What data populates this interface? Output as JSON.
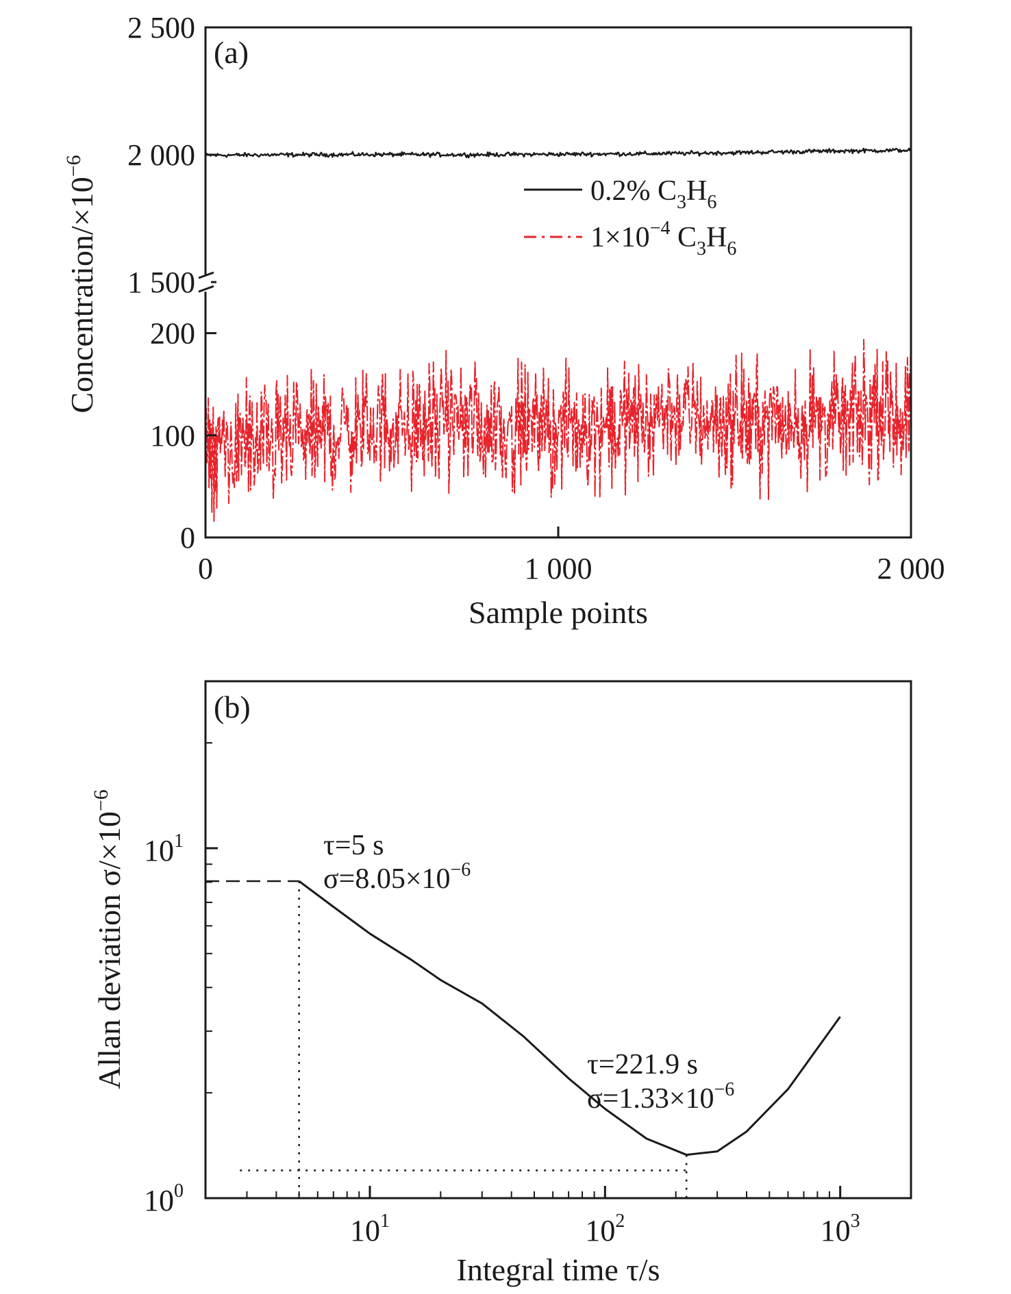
{
  "chart_data": [
    {
      "type": "line",
      "panel_label": "(a)",
      "xlabel": "Sample points",
      "ylabel": "Concentration/×10",
      "ylabel_sup": "−6",
      "xlim": [
        0,
        2000
      ],
      "x_ticks": [
        {
          "value": 0,
          "label": "0"
        },
        {
          "value": 1000,
          "label": "1 000"
        },
        {
          "value": 2000,
          "label": "2 000"
        }
      ],
      "y_axis_break": true,
      "y_segments": [
        {
          "range": [
            0,
            250
          ],
          "ticks": [
            {
              "value": 0,
              "label": "0"
            },
            {
              "value": 100,
              "label": "100"
            },
            {
              "value": 200,
              "label": "200"
            }
          ]
        },
        {
          "range": [
            1500,
            2500
          ],
          "ticks": [
            {
              "value": 1500,
              "label": "1 500"
            },
            {
              "value": 2000,
              "label": "2 000"
            },
            {
              "value": 2500,
              "label": "2 500"
            }
          ]
        }
      ],
      "legend_position": "middle-right",
      "series": [
        {
          "name": "0.2% C3H6",
          "legend_text": "0.2% C",
          "legend_sub1": "3",
          "legend_mid": "H",
          "legend_sub2": "6",
          "color": "#1a1a1a",
          "style": "solid",
          "x": [
            0,
            250,
            500,
            750,
            1000,
            1250,
            1500,
            1750,
            2000
          ],
          "values": [
            1998,
            2000,
            2001,
            2000,
            2002,
            2004,
            2008,
            2014,
            2018
          ],
          "noise_amplitude": 6
        },
        {
          "name": "1×10⁻⁴ C3H6",
          "legend_text": "1×10",
          "legend_sup": "−4",
          "legend_text2": " C",
          "legend_sub1": "3",
          "legend_mid": "H",
          "legend_sub2": "6",
          "color": "#e8222a",
          "style": "dash-dot",
          "x": [
            0,
            250,
            500,
            750,
            1000,
            1250,
            1300,
            1350,
            1500,
            1750,
            2000
          ],
          "values": [
            85,
            95,
            110,
            110,
            105,
            115,
            125,
            120,
            112,
            115,
            120
          ],
          "noise_amplitude": 42
        }
      ]
    },
    {
      "type": "line",
      "panel_label": "(b)",
      "xlabel": "Integral time τ/s",
      "ylabel": "Allan deviation σ/×10",
      "ylabel_sup": "−6",
      "x_scale": "log",
      "y_scale": "log",
      "xlim": [
        2,
        2000
      ],
      "ylim": [
        1,
        30
      ],
      "x_ticks": [
        {
          "value": 10,
          "base": "10",
          "exp": "1"
        },
        {
          "value": 100,
          "base": "10",
          "exp": "2"
        },
        {
          "value": 1000,
          "base": "10",
          "exp": "3"
        }
      ],
      "y_ticks": [
        {
          "value": 1,
          "base": "10",
          "exp": "0"
        },
        {
          "value": 10,
          "base": "10",
          "exp": "1"
        }
      ],
      "series": [
        {
          "name": "",
          "color": "#1a1a1a",
          "x": [
            5,
            7,
            10,
            15,
            20,
            30,
            45,
            70,
            100,
            150,
            221.9,
            300,
            400,
            600,
            1000
          ],
          "values": [
            8.05,
            6.8,
            5.7,
            4.8,
            4.2,
            3.6,
            2.9,
            2.2,
            1.8,
            1.48,
            1.33,
            1.36,
            1.55,
            2.05,
            3.3
          ]
        }
      ],
      "annotations": [
        {
          "tau": 5,
          "sigma": 8.05,
          "line1": "τ=5 s",
          "line2": "σ=8.05×10",
          "sup": "−6"
        },
        {
          "tau": 221.9,
          "sigma": 1.33,
          "line1": "τ=221.9 s",
          "line2": "σ=1.33×10",
          "sup": "−6"
        }
      ]
    }
  ]
}
